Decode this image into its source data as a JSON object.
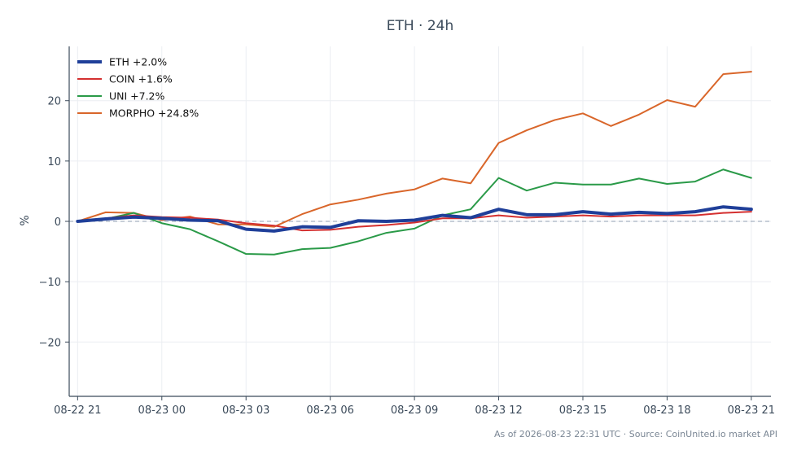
{
  "chart_data": {
    "type": "line",
    "title": "ETH · 24h",
    "ylabel": "%",
    "xlabel": "",
    "footer": "As of 2026-08-23 22:31 UTC · Source: CoinUnited.io market API",
    "x_ticks": [
      {
        "hour": 0,
        "label": "08-22 21"
      },
      {
        "hour": 3,
        "label": "08-23 00"
      },
      {
        "hour": 6,
        "label": "08-23 03"
      },
      {
        "hour": 9,
        "label": "08-23 06"
      },
      {
        "hour": 12,
        "label": "08-23 09"
      },
      {
        "hour": 15,
        "label": "08-23 12"
      },
      {
        "hour": 18,
        "label": "08-23 15"
      },
      {
        "hour": 21,
        "label": "08-23 18"
      },
      {
        "hour": 24,
        "label": "08-23 21"
      }
    ],
    "y_ticks": [
      {
        "value": 20,
        "label": "20"
      },
      {
        "value": 10,
        "label": "10"
      },
      {
        "value": 0,
        "label": "0"
      },
      {
        "value": -10,
        "label": "−10"
      },
      {
        "value": -20,
        "label": "−20"
      }
    ],
    "xlim": [
      -0.3,
      24.7
    ],
    "ylim": [
      -29,
      29
    ],
    "grid": true,
    "zero_line": true,
    "legend_position": "top-left",
    "x": [
      1,
      2,
      3,
      4,
      5,
      6,
      7,
      8,
      9,
      10,
      11,
      12,
      13,
      14,
      15,
      16,
      17,
      18,
      19,
      20,
      21,
      22,
      23,
      24,
      25
    ],
    "series": [
      {
        "name": "ETH +2.0%",
        "color": "#1f3f99",
        "width": 4,
        "values": [
          0.0,
          0.4,
          0.7,
          0.5,
          0.2,
          0.1,
          -1.3,
          -1.6,
          -0.9,
          -1.0,
          0.1,
          0.0,
          0.2,
          1.0,
          0.6,
          2.0,
          1.1,
          1.1,
          1.6,
          1.2,
          1.5,
          1.3,
          1.6,
          2.4,
          2.0
        ]
      },
      {
        "name": "COIN +1.6%",
        "color": "#d43030",
        "width": 2,
        "values": [
          0.0,
          0.5,
          1.0,
          0.7,
          0.6,
          0.3,
          -0.3,
          -0.7,
          -1.5,
          -1.4,
          -0.9,
          -0.6,
          -0.2,
          0.5,
          0.5,
          1.0,
          0.6,
          0.8,
          1.0,
          0.8,
          1.0,
          1.0,
          1.0,
          1.4,
          1.6
        ]
      },
      {
        "name": "UNI +7.2%",
        "color": "#2a9a48",
        "width": 2,
        "values": [
          0.0,
          0.4,
          1.4,
          -0.3,
          -1.3,
          -3.3,
          -5.4,
          -5.5,
          -4.6,
          -4.4,
          -3.3,
          -1.9,
          -1.2,
          1.0,
          2.0,
          7.2,
          5.1,
          6.4,
          6.1,
          6.1,
          7.1,
          6.2,
          6.6,
          8.6,
          7.2
        ]
      },
      {
        "name": "MORPHO +24.8%",
        "color": "#d9662a",
        "width": 2,
        "values": [
          0.0,
          1.5,
          1.4,
          0.2,
          0.8,
          -0.5,
          -0.5,
          -0.9,
          1.2,
          2.8,
          3.6,
          4.6,
          5.3,
          7.1,
          6.3,
          13.0,
          15.1,
          16.8,
          17.9,
          15.8,
          17.7,
          20.1,
          19.0,
          24.4,
          24.8
        ]
      }
    ]
  }
}
